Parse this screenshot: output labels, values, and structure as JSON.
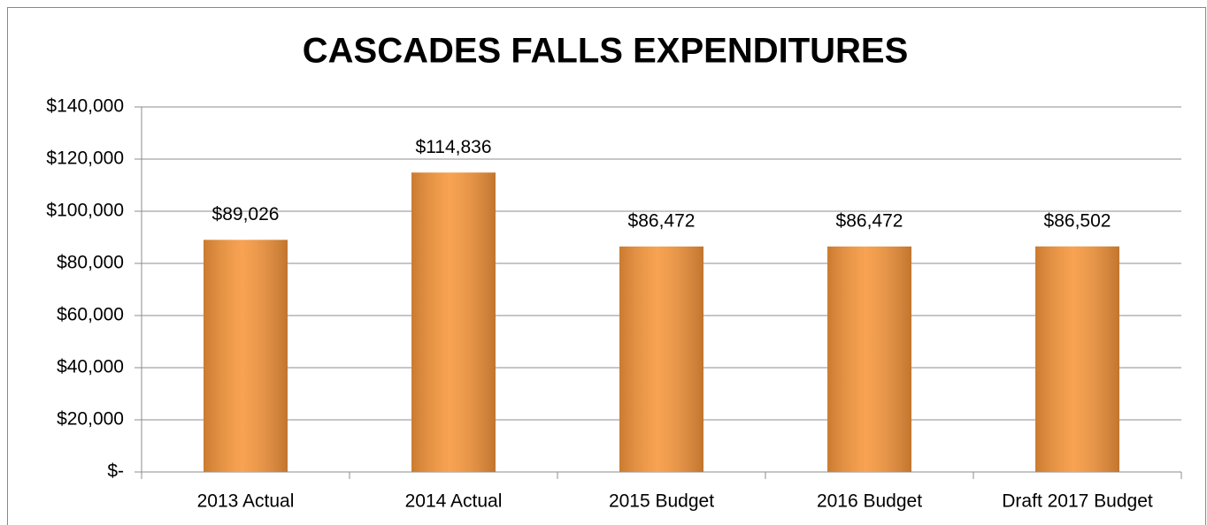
{
  "chart_data": {
    "type": "bar",
    "title": "CASCADES FALLS EXPENDITURES",
    "categories": [
      "2013 Actual",
      "2014 Actual",
      "2015 Budget",
      "2016 Budget",
      "Draft 2017 Budget"
    ],
    "values": [
      89026,
      114836,
      86472,
      86472,
      86502
    ],
    "value_labels": [
      "$89,026",
      "$114,836",
      "$86,472",
      "$86,472",
      "$86,502"
    ],
    "color": "#f7963b",
    "ylim": [
      0,
      140000
    ],
    "yticks": [
      {
        "value": 0,
        "label": "$-"
      },
      {
        "value": 20000,
        "label": "$20,000"
      },
      {
        "value": 40000,
        "label": "$40,000"
      },
      {
        "value": 60000,
        "label": "$60,000"
      },
      {
        "value": 80000,
        "label": "$80,000"
      },
      {
        "value": 100000,
        "label": "$100,000"
      },
      {
        "value": 120000,
        "label": "$120,000"
      },
      {
        "value": 140000,
        "label": "$140,000"
      }
    ],
    "grid": true
  }
}
